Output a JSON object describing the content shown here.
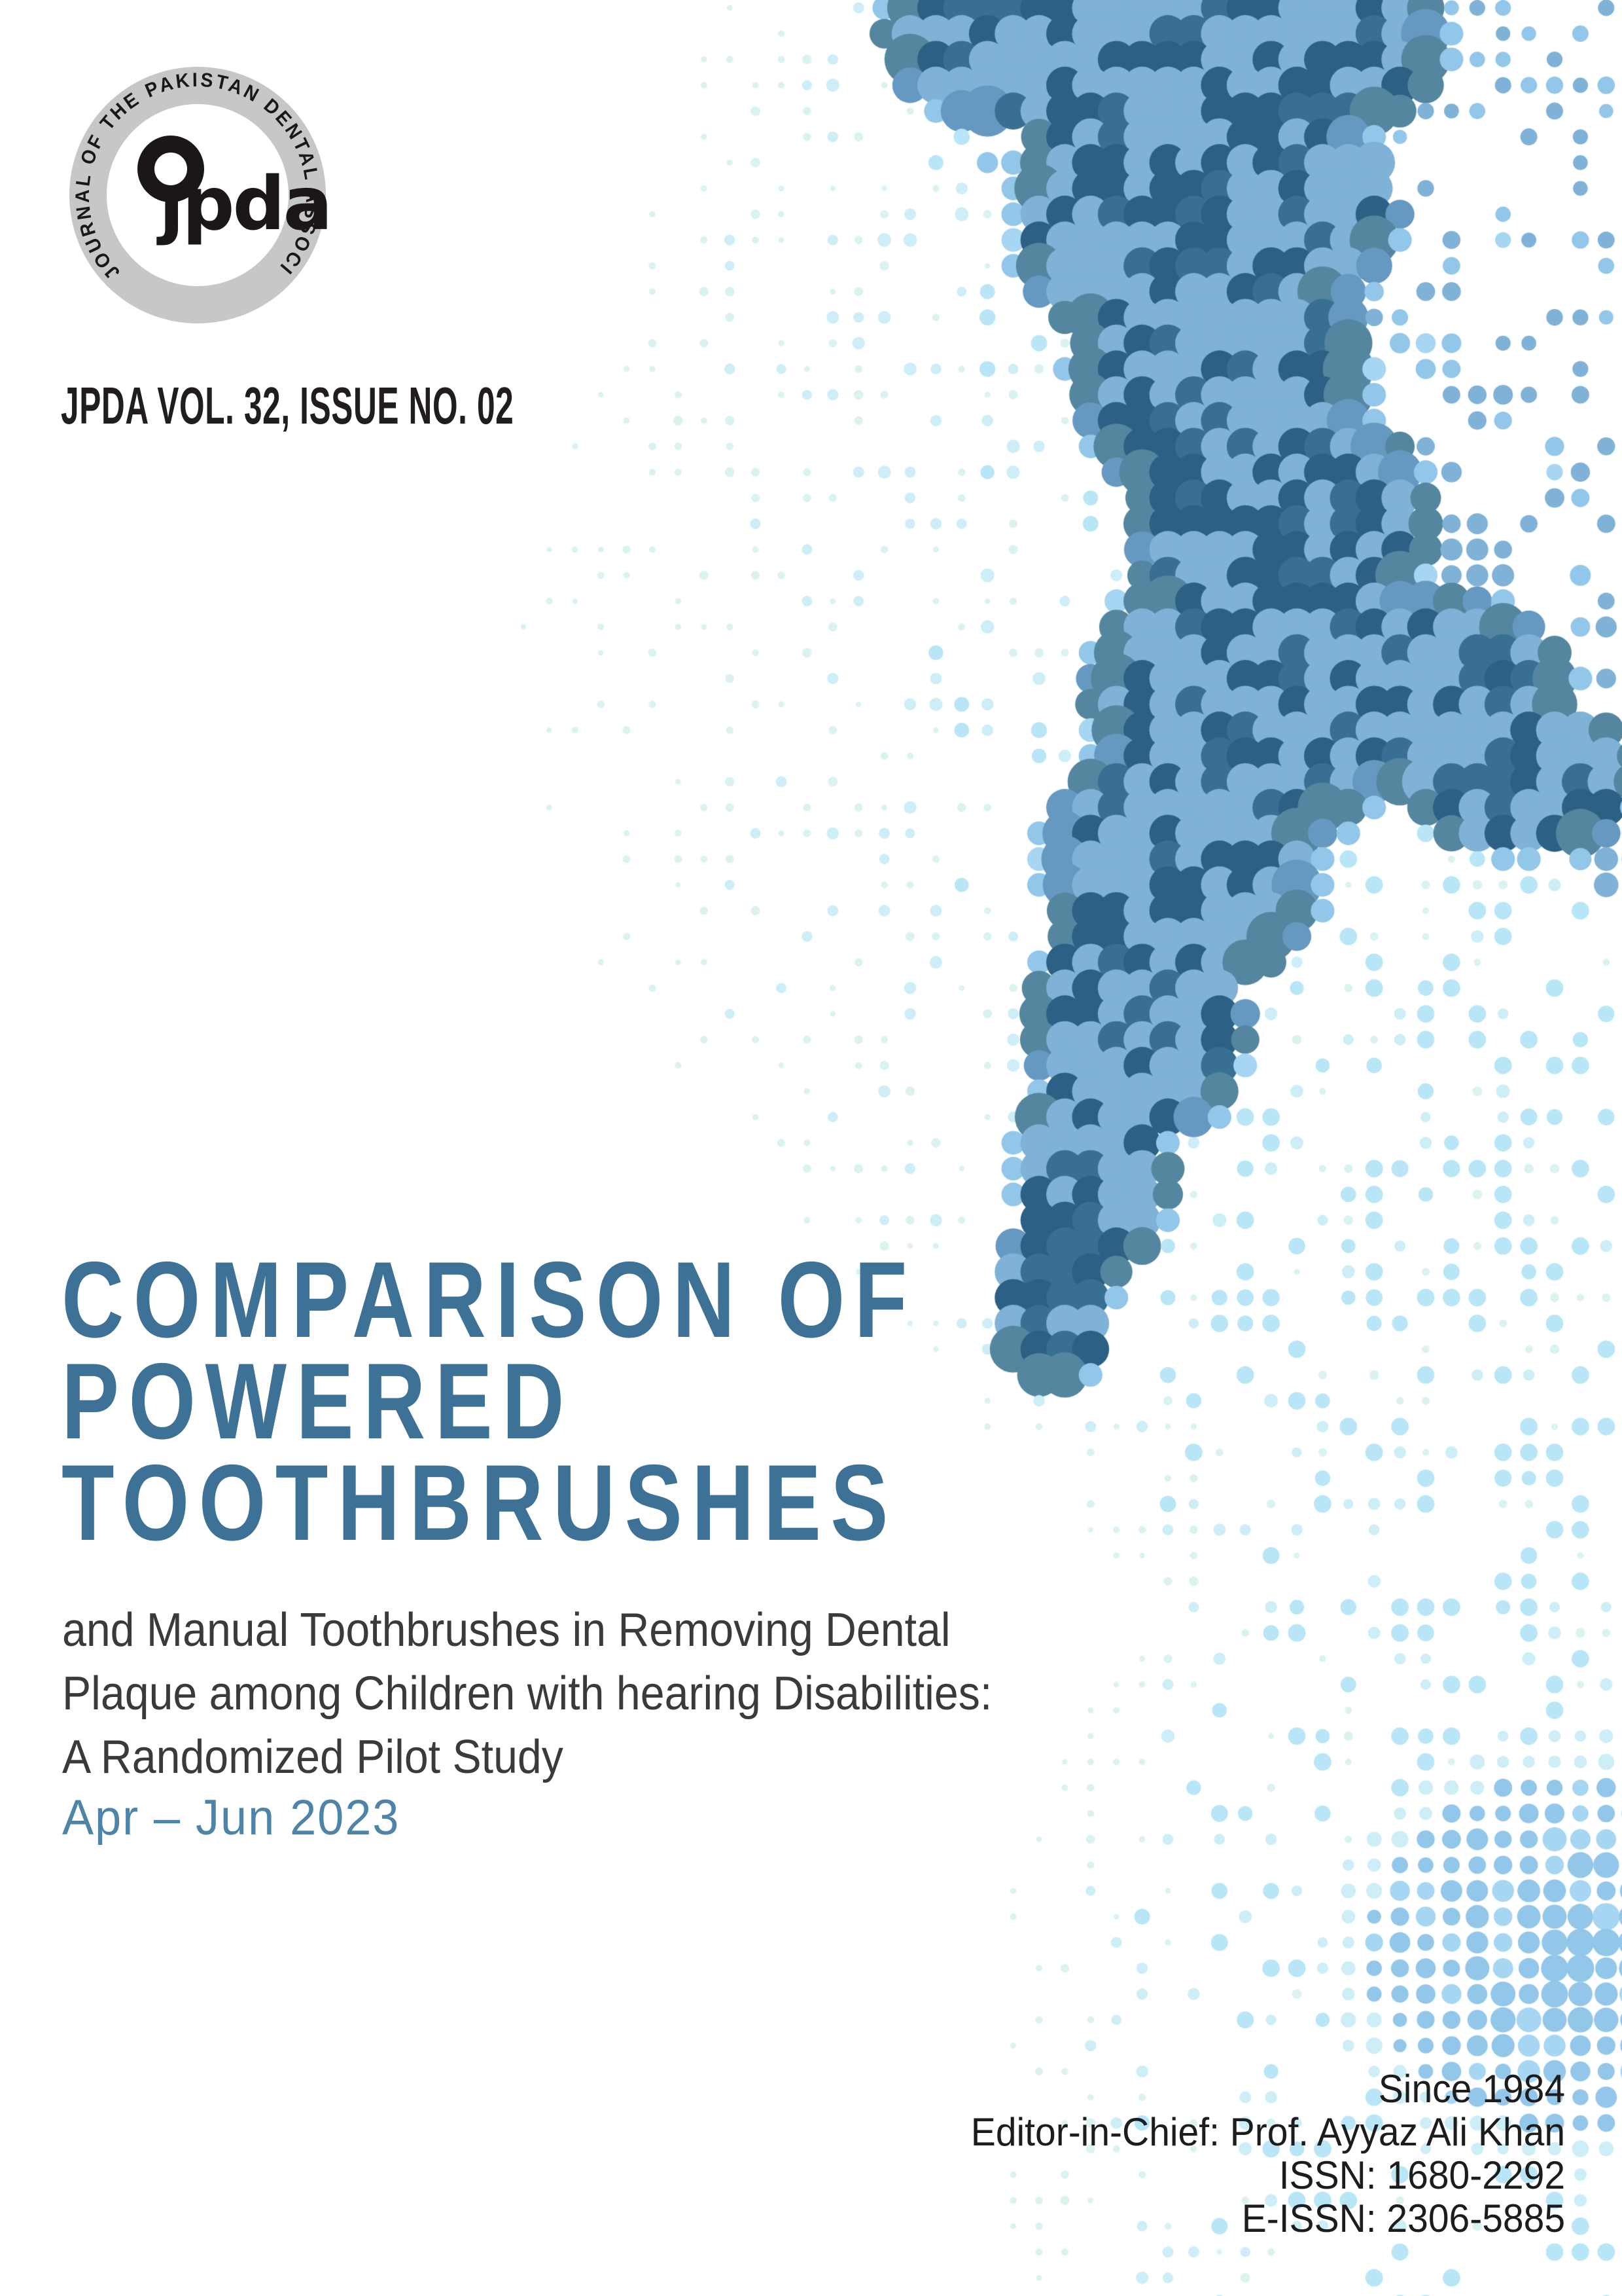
{
  "logo": {
    "ring_text": "JOURNAL OF THE PAKISTAN DENTAL ASSOCIATION",
    "monogram": "jpda",
    "monogram_display": "ȷpda",
    "ring_color": "#c6c7c9",
    "ink_color": "#1b1718"
  },
  "masthead": {
    "volume_line": "JPDA VOL. 32, ISSUE NO. 02",
    "color": "#211d1e"
  },
  "title": {
    "lines": [
      "COMPARISON OF",
      "POWERED",
      "TOOTHBRUSHES"
    ],
    "color": "#3d7196"
  },
  "subtitle": {
    "lines": [
      "and Manual Toothbrushes in Removing Dental",
      "Plaque among Children with hearing Disabilities:",
      "A Randomized Pilot Study"
    ],
    "color": "#3a3a3c"
  },
  "issue_date": {
    "text": "Apr – Jun 2023",
    "color": "#4d84a8"
  },
  "footer": {
    "lines": [
      "Since 1984",
      "Editor-in-Chief: Prof. Ayyaz Ali Khan",
      "ISSN: 1680-2292",
      "E-ISSN: 2306-5885"
    ],
    "color": "#1c1c1c"
  },
  "artwork": {
    "palette": {
      "dark": [
        "#2c6084",
        "#3a6f94",
        "#477b9e",
        "#54869f"
      ],
      "medium": [
        "#6699c2",
        "#7fb2d6"
      ],
      "light": [
        "#93c7ea",
        "#a7d6f2",
        "#bfe4f8"
      ],
      "pale": [
        "#b9e6f6",
        "#cdeef7",
        "#daf3f1",
        "#e6f8f4"
      ]
    }
  }
}
